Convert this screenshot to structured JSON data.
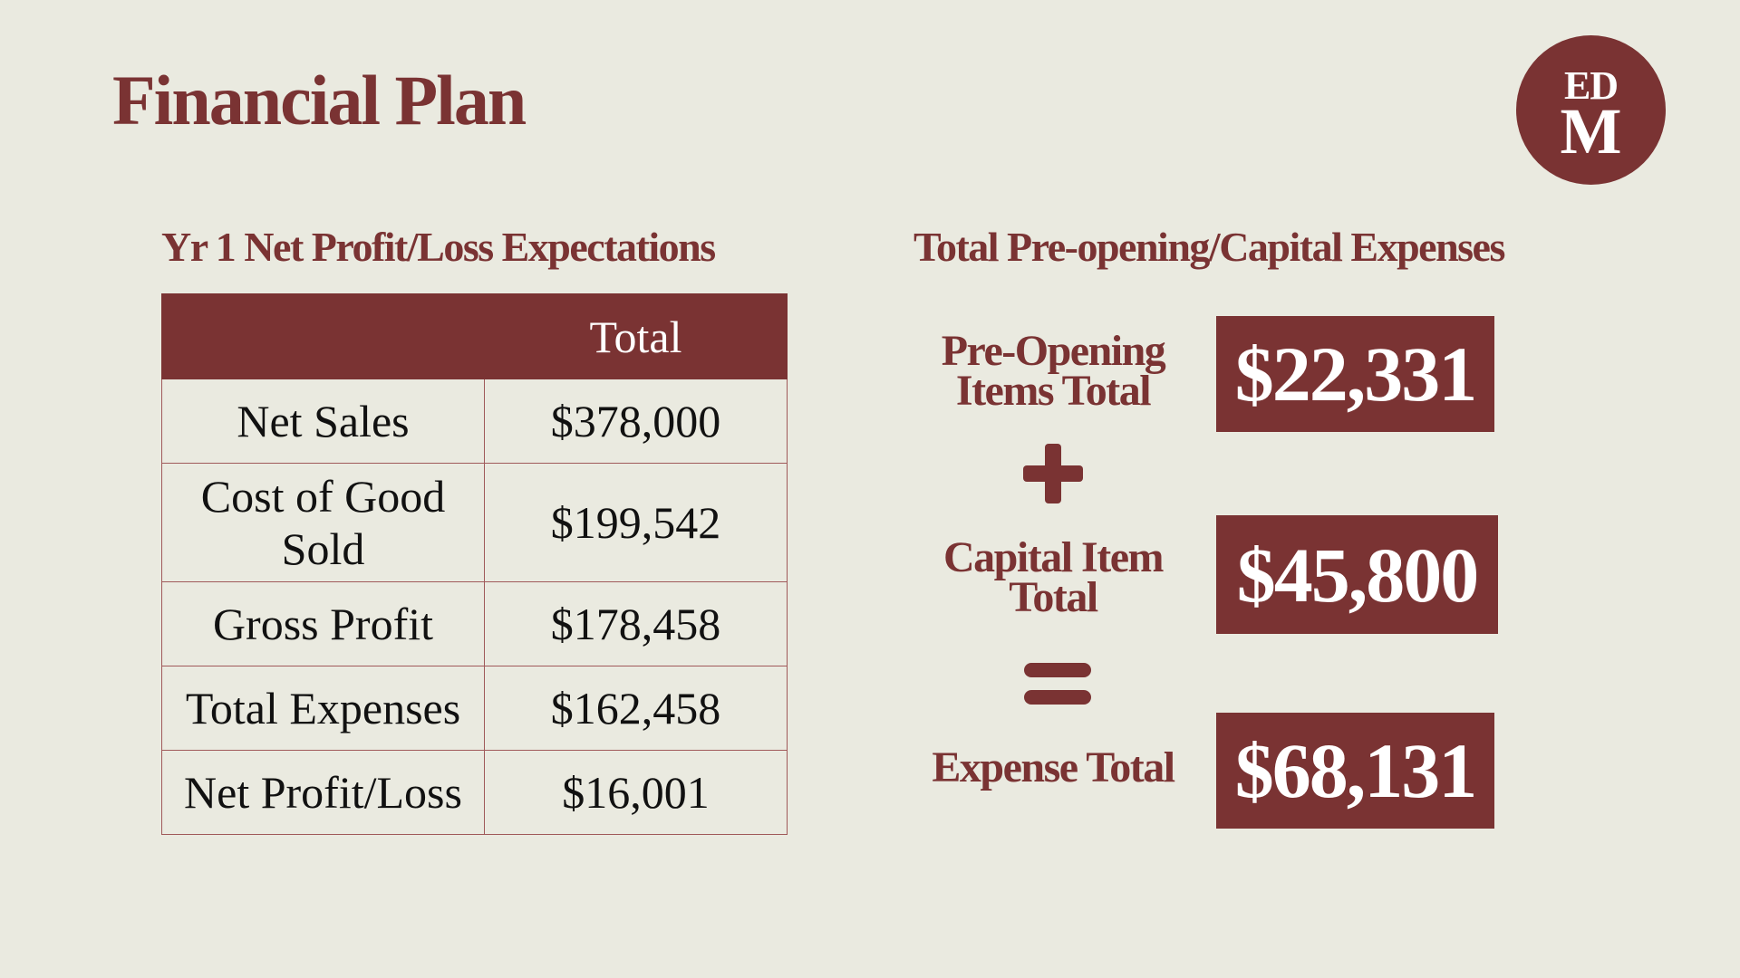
{
  "slide": {
    "title": "Financial Plan"
  },
  "logo": {
    "line1": "ED",
    "line2": "M"
  },
  "profit_loss": {
    "heading": "Yr 1 Net Profit/Loss Expectations",
    "columns": [
      "",
      "Total"
    ],
    "rows": [
      {
        "label": "Net Sales",
        "value": "$378,000"
      },
      {
        "label": "Cost of Good Sold",
        "value": "$199,542"
      },
      {
        "label": "Gross Profit",
        "value": "$178,458"
      },
      {
        "label": "Total Expenses",
        "value": "$162,458"
      },
      {
        "label": "Net Profit/Loss",
        "value": "$16,001"
      }
    ]
  },
  "expenses": {
    "heading": "Total Pre-opening/Capital Expenses",
    "pre_opening": {
      "label": "Pre-Opening Items Total",
      "value": "$22,331"
    },
    "capital": {
      "label": "Capital Item Total",
      "value": "$45,800"
    },
    "total": {
      "label": "Expense Total",
      "value": "$68,131"
    },
    "plus_operator": "+",
    "equals_operator": "="
  },
  "colors": {
    "background": "#EAEAE0",
    "accent": "#7A3333",
    "text": "#111111"
  }
}
